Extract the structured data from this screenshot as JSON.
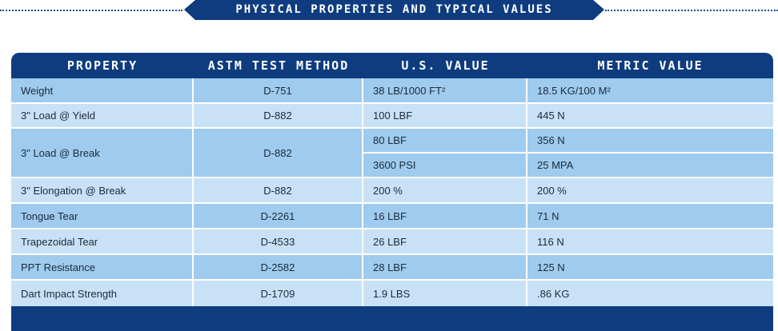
{
  "title": "PHYSICAL PROPERTIES AND TYPICAL VALUES",
  "colors": {
    "navy": "#0e3c7f",
    "row_dark": "#9fcbee",
    "row_light": "#c9e1f6"
  },
  "table": {
    "headers": [
      "PROPERTY",
      "ASTM TEST METHOD",
      "U.S. VALUE",
      "METRIC VALUE"
    ],
    "rows": [
      {
        "property": "Weight",
        "method": "D-751",
        "us": "38 LB/1000 FT²",
        "metric": "18.5 KG/100 M²"
      },
      {
        "property": "3\" Load @ Yield",
        "method": "D-882",
        "us": "100 LBF",
        "metric": "445 N"
      },
      {
        "property": "3\" Load @ Break",
        "method": "D-882",
        "us": "80 LBF",
        "metric": "356 N",
        "us2": "3600 PSI",
        "metric2": "25 MPA"
      },
      {
        "property": "3\" Elongation @ Break",
        "method": "D-882",
        "us": "200 %",
        "metric": "200 %"
      },
      {
        "property": "Tongue Tear",
        "method": "D-2261",
        "us": "16 LBF",
        "metric": "71 N"
      },
      {
        "property": "Trapezoidal Tear",
        "method": "D-4533",
        "us": "26 LBF",
        "metric": "116 N"
      },
      {
        "property": "PPT Resistance",
        "method": "D-2582",
        "us": "28 LBF",
        "metric": "125 N"
      },
      {
        "property": "Dart Impact Strength",
        "method": "D-1709",
        "us": "1.9 LBS",
        "metric": ".86 KG"
      }
    ]
  }
}
